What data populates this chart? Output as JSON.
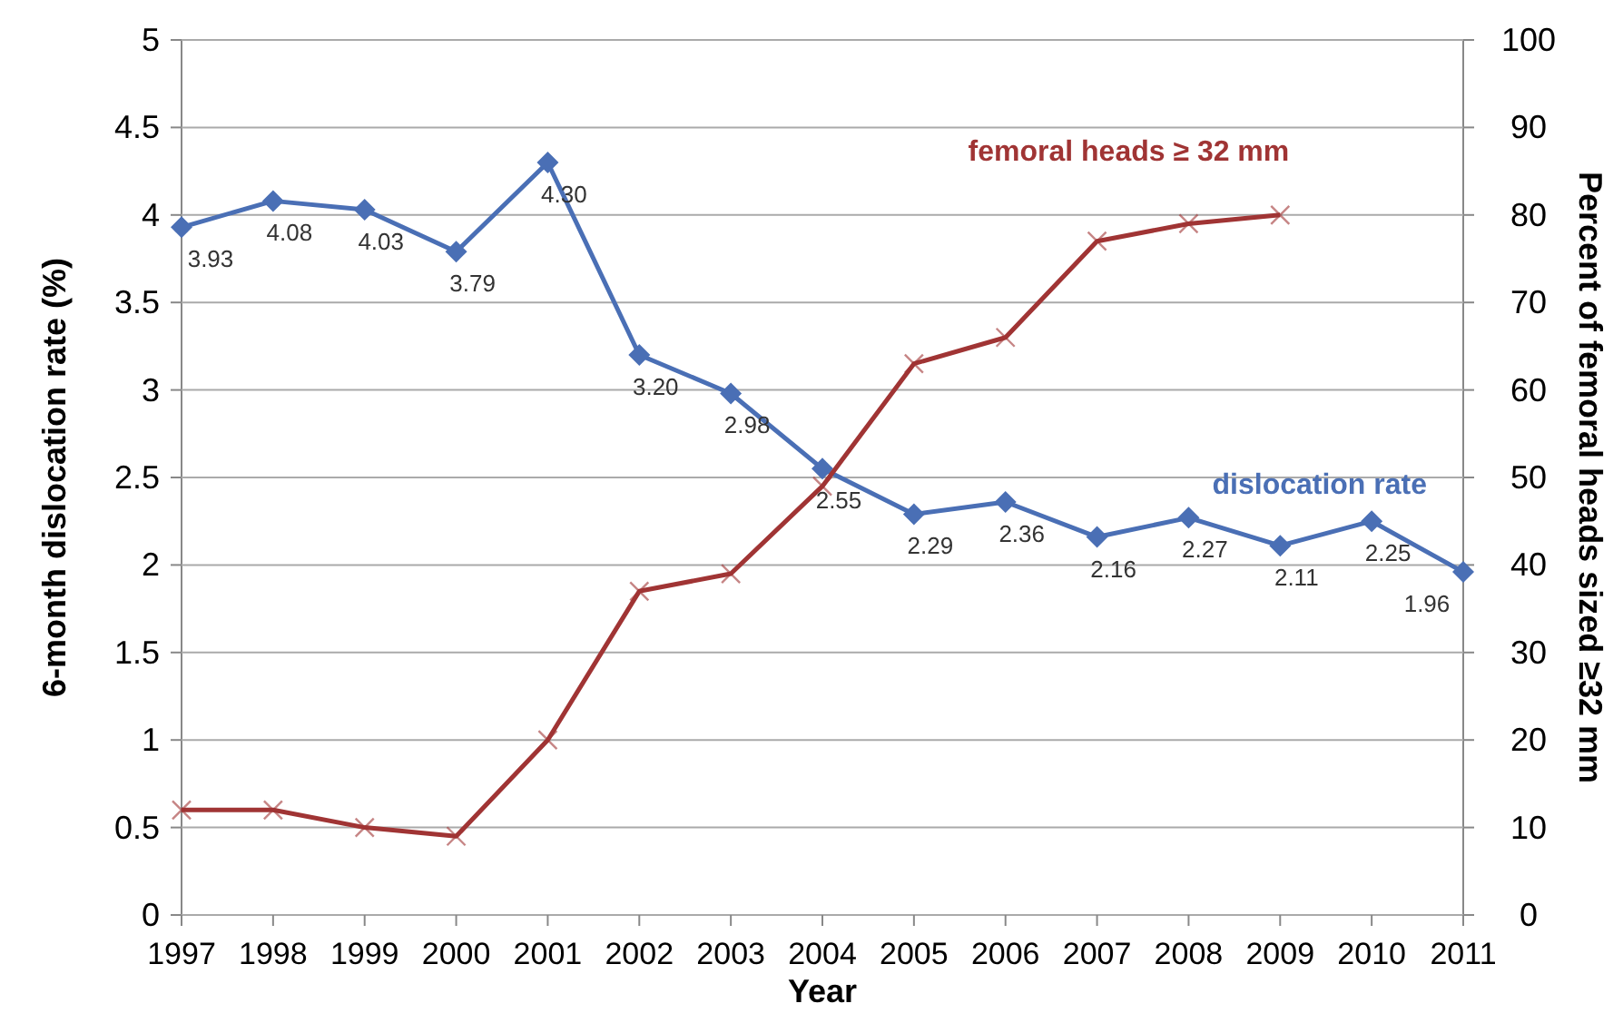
{
  "chart_data": {
    "type": "line",
    "xlabel": "Year",
    "ylabel": "6-month dislocation rate (%)",
    "y2label": "Percent of femoral heads sized ≥32 mm",
    "categories": [
      "1997",
      "1998",
      "1999",
      "2000",
      "2001",
      "2002",
      "2003",
      "2004",
      "2005",
      "2006",
      "2007",
      "2008",
      "2009",
      "2010",
      "2011"
    ],
    "ylim": [
      0,
      5
    ],
    "yticks": [
      0,
      0.5,
      1,
      1.5,
      2,
      2.5,
      3,
      3.5,
      4,
      4.5,
      5
    ],
    "y2lim": [
      0,
      100
    ],
    "y2ticks": [
      0,
      10,
      20,
      30,
      40,
      50,
      60,
      70,
      80,
      90,
      100
    ],
    "grid": "y",
    "series": [
      {
        "name": "dislocation rate",
        "color": "#4a6fb5",
        "marker": "diamond",
        "values": [
          3.93,
          4.08,
          4.03,
          3.79,
          4.3,
          3.2,
          2.98,
          2.55,
          2.29,
          2.36,
          2.16,
          2.27,
          2.11,
          2.25,
          1.96
        ],
        "value_labels": [
          "3.93",
          "4.08",
          "4.03",
          "3.79",
          "4.30",
          "3.20",
          "2.98",
          "2.55",
          "2.29",
          "2.36",
          "2.16",
          "2.27",
          "2.11",
          "2.25",
          "1.96"
        ]
      },
      {
        "name": "femoral heads ≥ 32 mm",
        "color": "#a03434",
        "marker": "cross",
        "axis": "y2",
        "values": [
          12,
          12,
          10,
          9,
          20,
          37,
          39,
          49,
          63,
          66,
          77,
          79,
          80,
          null,
          null
        ]
      }
    ]
  }
}
